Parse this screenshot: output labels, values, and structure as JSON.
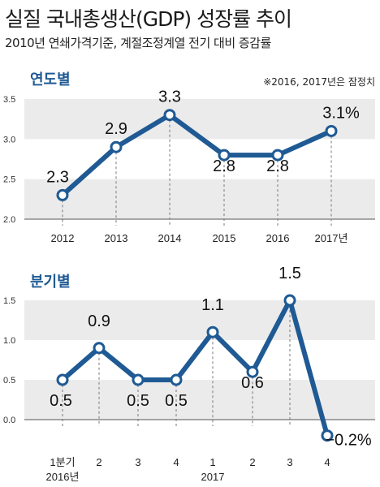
{
  "title": "실질 국내총생산(GDP) 성장률 추이",
  "subtitle": "2010년 연쇄가격기준, 계절조정계열 전기 대비 증감률",
  "chart_data": [
    {
      "type": "line",
      "section_label": "연도별",
      "note": "※2016, 2017년은 잠정치",
      "categories": [
        "2012",
        "2013",
        "2014",
        "2015",
        "2016",
        "2017년"
      ],
      "values": [
        2.3,
        2.9,
        3.3,
        2.8,
        2.8,
        3.1
      ],
      "data_labels": [
        "2.3",
        "2.9",
        "3.3",
        "2.8",
        "2.8",
        "3.1%"
      ],
      "yticks": [
        "3.5",
        "3.0",
        "2.5",
        "2.0"
      ],
      "ylim": [
        2.0,
        3.5
      ],
      "line_color": "#1f5a94",
      "band_color": "#ebebeb"
    },
    {
      "type": "line",
      "section_label": "분기별",
      "categories": [
        "1분기",
        "2",
        "3",
        "4",
        "1",
        "2",
        "3",
        "4"
      ],
      "year_labels": [
        "2016년",
        "2017"
      ],
      "values": [
        0.5,
        0.9,
        0.5,
        0.5,
        1.1,
        0.6,
        1.5,
        -0.2
      ],
      "data_labels": [
        "0.5",
        "0.9",
        "0.5",
        "0.5",
        "1.1",
        "0.6",
        "1.5",
        "−0.2%"
      ],
      "yticks": [
        "1.5",
        "1.0",
        "0.5",
        "0.0"
      ],
      "ylim": [
        0.0,
        1.5
      ],
      "line_color": "#1f5a94",
      "band_color": "#ebebeb"
    }
  ]
}
